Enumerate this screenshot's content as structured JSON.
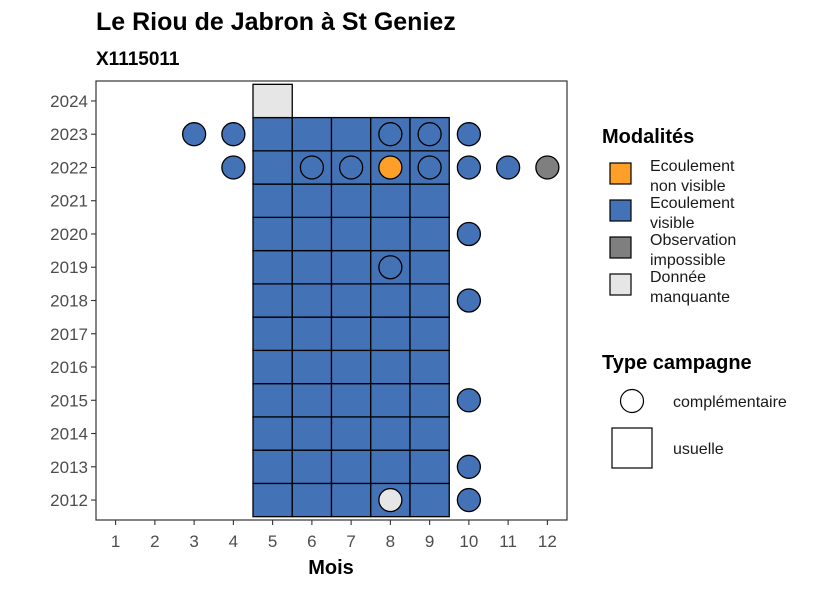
{
  "chart_data": {
    "type": "heatmap",
    "title": "Le Riou de Jabron à St Geniez",
    "subtitle": "X1115011",
    "xlabel": "Mois",
    "ylabel": "",
    "x_ticks": [
      1,
      2,
      3,
      4,
      5,
      6,
      7,
      8,
      9,
      10,
      11,
      12
    ],
    "y_ticks": [
      2012,
      2013,
      2014,
      2015,
      2016,
      2017,
      2018,
      2019,
      2020,
      2021,
      2022,
      2023,
      2024
    ],
    "xlim": [
      0.5,
      12.5
    ],
    "ylim": [
      2011.4,
      2024.6
    ],
    "grid": false,
    "colors": {
      "Ecoulement non visible": "#fe9f2a",
      "Ecoulement visible": "#4472b6",
      "Observation impossible": "#7f7f7f",
      "Donnée manquante": "#e6e6e6"
    },
    "legend": {
      "placement": "right",
      "modalites_title": "Modalités",
      "modalites": [
        {
          "key": "Ecoulement non visible",
          "line1": "Ecoulement",
          "line2": "non visible"
        },
        {
          "key": "Ecoulement visible",
          "line1": "Ecoulement",
          "line2": "visible"
        },
        {
          "key": "Observation impossible",
          "line1": "Observation",
          "line2": "impossible"
        },
        {
          "key": "Donnée manquante",
          "line1": "Donnée",
          "line2": "manquante"
        }
      ],
      "type_title": "Type campagne",
      "types": [
        {
          "shape": "circle",
          "label": "complémentaire"
        },
        {
          "shape": "square",
          "label": "usuelle"
        }
      ]
    },
    "usuelle": {
      "blue_months": [
        5,
        6,
        7,
        8,
        9
      ],
      "blue_years": [
        2012,
        2013,
        2014,
        2015,
        2016,
        2017,
        2018,
        2019,
        2020,
        2021,
        2022,
        2023
      ],
      "missing": [
        {
          "month": 5,
          "year": 2024
        }
      ]
    },
    "complementaire": [
      {
        "month": 3,
        "year": 2023,
        "value": "Ecoulement visible"
      },
      {
        "month": 4,
        "year": 2023,
        "value": "Ecoulement visible"
      },
      {
        "month": 8,
        "year": 2023,
        "value": "Ecoulement visible"
      },
      {
        "month": 9,
        "year": 2023,
        "value": "Ecoulement visible"
      },
      {
        "month": 10,
        "year": 2023,
        "value": "Ecoulement visible"
      },
      {
        "month": 4,
        "year": 2022,
        "value": "Ecoulement visible"
      },
      {
        "month": 6,
        "year": 2022,
        "value": "Ecoulement visible"
      },
      {
        "month": 7,
        "year": 2022,
        "value": "Ecoulement visible"
      },
      {
        "month": 8,
        "year": 2022,
        "value": "Ecoulement non visible"
      },
      {
        "month": 9,
        "year": 2022,
        "value": "Ecoulement visible"
      },
      {
        "month": 10,
        "year": 2022,
        "value": "Ecoulement visible"
      },
      {
        "month": 11,
        "year": 2022,
        "value": "Ecoulement visible"
      },
      {
        "month": 12,
        "year": 2022,
        "value": "Observation impossible"
      },
      {
        "month": 10,
        "year": 2020,
        "value": "Ecoulement visible"
      },
      {
        "month": 8,
        "year": 2019,
        "value": "Ecoulement visible"
      },
      {
        "month": 10,
        "year": 2018,
        "value": "Ecoulement visible"
      },
      {
        "month": 10,
        "year": 2015,
        "value": "Ecoulement visible"
      },
      {
        "month": 10,
        "year": 2013,
        "value": "Ecoulement visible"
      },
      {
        "month": 8,
        "year": 2012,
        "value": "Donnée manquante"
      },
      {
        "month": 10,
        "year": 2012,
        "value": "Ecoulement visible"
      }
    ]
  }
}
